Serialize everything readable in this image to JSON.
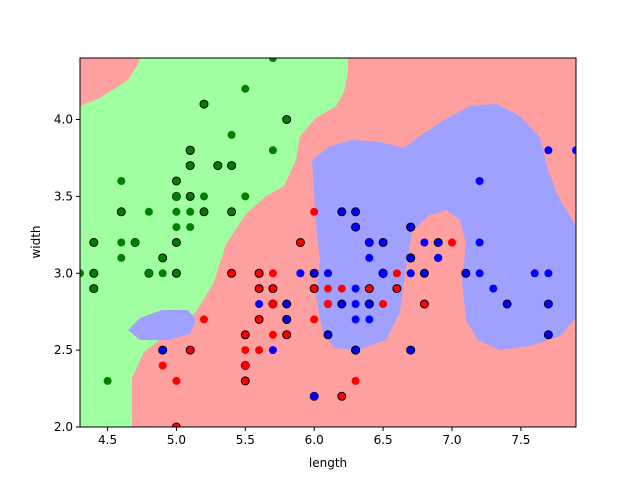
{
  "chart_data": {
    "type": "scatter",
    "title": "",
    "xlabel": "length",
    "ylabel": "width",
    "xlim": [
      4.3,
      7.9
    ],
    "ylim": [
      2.0,
      4.4
    ],
    "xticks": [
      "4.5",
      "5.0",
      "5.5",
      "6.0",
      "6.5",
      "7.0",
      "7.5"
    ],
    "yticks": [
      "2.0",
      "2.5",
      "3.0",
      "3.5",
      "4.0"
    ],
    "grid": false,
    "legend": "none",
    "background_regions": {
      "green": "#a0ffa0",
      "red": "#ffa0a0",
      "blue": "#a0a0ff"
    },
    "series": [
      {
        "color": "#008000",
        "points": [
          [
            5.1,
            3.5
          ],
          [
            4.9,
            3.0
          ],
          [
            4.7,
            3.2
          ],
          [
            4.6,
            3.1
          ],
          [
            5.0,
            3.6
          ],
          [
            5.4,
            3.9
          ],
          [
            4.6,
            3.4
          ],
          [
            5.0,
            3.4
          ],
          [
            4.4,
            2.9
          ],
          [
            4.9,
            3.1
          ],
          [
            5.4,
            3.7
          ],
          [
            4.8,
            3.4
          ],
          [
            4.8,
            3.0
          ],
          [
            4.3,
            3.0
          ],
          [
            5.8,
            4.0
          ],
          [
            5.7,
            4.4
          ],
          [
            5.1,
            3.8
          ],
          [
            5.7,
            3.8
          ],
          [
            5.1,
            3.7
          ],
          [
            5.1,
            3.3
          ],
          [
            5.0,
            3.0
          ],
          [
            5.2,
            3.5
          ],
          [
            5.2,
            3.4
          ],
          [
            4.7,
            3.2
          ],
          [
            5.2,
            4.1
          ],
          [
            5.5,
            4.2
          ],
          [
            5.0,
            3.2
          ],
          [
            5.5,
            3.5
          ],
          [
            4.4,
            3.0
          ],
          [
            5.1,
            3.4
          ],
          [
            5.0,
            3.5
          ],
          [
            4.5,
            2.3
          ],
          [
            4.4,
            3.2
          ],
          [
            5.0,
            3.5
          ],
          [
            5.1,
            3.8
          ],
          [
            4.8,
            3.0
          ],
          [
            5.1,
            3.8
          ],
          [
            4.6,
            3.2
          ],
          [
            5.3,
            3.7
          ],
          [
            5.0,
            3.3
          ],
          [
            4.9,
            3.1
          ],
          [
            4.6,
            3.6
          ],
          [
            5.4,
            3.4
          ]
        ]
      },
      {
        "color": "#ff0000",
        "points": [
          [
            7.0,
            3.2
          ],
          [
            6.4,
            3.2
          ],
          [
            6.9,
            3.1
          ],
          [
            5.5,
            2.3
          ],
          [
            6.5,
            2.8
          ],
          [
            5.7,
            2.8
          ],
          [
            4.9,
            2.4
          ],
          [
            6.6,
            2.9
          ],
          [
            5.2,
            2.7
          ],
          [
            5.0,
            2.0
          ],
          [
            5.9,
            3.0
          ],
          [
            6.0,
            2.2
          ],
          [
            6.1,
            2.9
          ],
          [
            5.6,
            2.9
          ],
          [
            6.7,
            3.1
          ],
          [
            5.6,
            3.0
          ],
          [
            5.8,
            2.7
          ],
          [
            6.2,
            2.2
          ],
          [
            5.6,
            2.5
          ],
          [
            5.9,
            3.2
          ],
          [
            6.1,
            2.8
          ],
          [
            6.3,
            2.5
          ],
          [
            6.1,
            2.8
          ],
          [
            6.4,
            2.9
          ],
          [
            6.6,
            3.0
          ],
          [
            6.8,
            2.8
          ],
          [
            6.7,
            3.0
          ],
          [
            6.0,
            2.9
          ],
          [
            5.7,
            2.6
          ],
          [
            5.5,
            2.4
          ],
          [
            5.5,
            2.4
          ],
          [
            5.8,
            2.7
          ],
          [
            6.0,
            2.7
          ],
          [
            5.4,
            3.0
          ],
          [
            6.0,
            3.4
          ],
          [
            6.7,
            3.1
          ],
          [
            6.3,
            2.3
          ],
          [
            5.6,
            3.0
          ],
          [
            5.5,
            2.5
          ],
          [
            5.5,
            2.6
          ],
          [
            6.1,
            3.0
          ],
          [
            5.8,
            2.6
          ],
          [
            5.0,
            2.3
          ],
          [
            5.6,
            2.7
          ],
          [
            5.7,
            3.0
          ],
          [
            5.7,
            2.9
          ],
          [
            6.2,
            2.9
          ],
          [
            5.1,
            2.5
          ],
          [
            5.7,
            2.8
          ],
          [
            6.5,
            3.0
          ]
        ]
      },
      {
        "color": "#0000ff",
        "points": [
          [
            6.3,
            3.3
          ],
          [
            5.8,
            2.7
          ],
          [
            7.1,
            3.0
          ],
          [
            6.3,
            2.9
          ],
          [
            6.5,
            3.0
          ],
          [
            7.6,
            3.0
          ],
          [
            4.9,
            2.5
          ],
          [
            7.3,
            2.9
          ],
          [
            6.7,
            2.5
          ],
          [
            7.2,
            3.6
          ],
          [
            6.5,
            3.2
          ],
          [
            6.4,
            2.7
          ],
          [
            6.8,
            3.0
          ],
          [
            5.7,
            2.5
          ],
          [
            5.8,
            2.8
          ],
          [
            6.4,
            3.2
          ],
          [
            6.5,
            3.0
          ],
          [
            7.7,
            3.8
          ],
          [
            7.7,
            2.6
          ],
          [
            6.0,
            2.2
          ],
          [
            6.9,
            3.2
          ],
          [
            5.6,
            2.8
          ],
          [
            7.7,
            2.8
          ],
          [
            6.3,
            2.7
          ],
          [
            6.7,
            3.3
          ],
          [
            7.2,
            3.2
          ],
          [
            6.2,
            2.8
          ],
          [
            6.1,
            3.0
          ],
          [
            6.4,
            2.8
          ],
          [
            7.2,
            3.0
          ],
          [
            7.4,
            2.8
          ],
          [
            7.9,
            3.8
          ],
          [
            6.4,
            2.8
          ],
          [
            6.3,
            2.8
          ],
          [
            6.1,
            2.6
          ],
          [
            7.7,
            3.0
          ],
          [
            6.3,
            3.4
          ],
          [
            6.4,
            3.1
          ],
          [
            6.0,
            3.0
          ],
          [
            6.9,
            3.1
          ],
          [
            6.7,
            3.1
          ],
          [
            6.9,
            3.1
          ],
          [
            5.8,
            2.7
          ],
          [
            6.8,
            3.2
          ],
          [
            6.7,
            3.3
          ],
          [
            6.7,
            3.0
          ],
          [
            6.3,
            2.5
          ],
          [
            6.5,
            3.0
          ],
          [
            6.2,
            3.4
          ],
          [
            5.9,
            3.0
          ]
        ]
      }
    ]
  }
}
